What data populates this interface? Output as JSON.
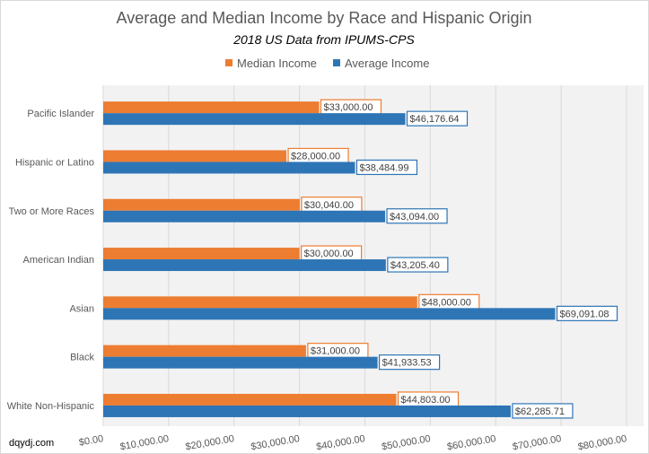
{
  "chart_data": {
    "type": "bar",
    "orientation": "horizontal",
    "title": "Average and Median Income by Race and Hispanic Origin",
    "subtitle": "2018 US Data from  IPUMS-CPS",
    "categories": [
      "Pacific Islander",
      "Hispanic or Latino",
      "Two or More Races",
      "American Indian",
      "Asian",
      "Black",
      "White Non-Hispanic"
    ],
    "series": [
      {
        "name": "Median Income",
        "color": "#ed7d31",
        "values": [
          33000,
          28000,
          30040,
          30000,
          48000,
          31000,
          44803
        ],
        "labels": [
          "$33,000.00",
          "$28,000.00",
          "$30,040.00",
          "$30,000.00",
          "$48,000.00",
          "$31,000.00",
          "$44,803.00"
        ]
      },
      {
        "name": "Average Income",
        "color": "#2e75b6",
        "values": [
          46176.64,
          38484.99,
          43094.0,
          43205.4,
          69091.08,
          41933.53,
          62285.71
        ],
        "labels": [
          "$46,176.64",
          "$38,484.99",
          "$43,094.00",
          "$43,205.40",
          "$69,091.08",
          "$41,933.53",
          "$62,285.71"
        ]
      }
    ],
    "xlim": [
      0,
      80000
    ],
    "xticks": [
      "$0.00",
      "$10,000.00",
      "$20,000.00",
      "$30,000.00",
      "$40,000.00",
      "$50,000.00",
      "$60,000.00",
      "$70,000.00",
      "$80,000.00"
    ],
    "grid": true,
    "legend": "top",
    "xlabel": "",
    "ylabel": ""
  },
  "footer": {
    "source": "dqydj.com"
  }
}
